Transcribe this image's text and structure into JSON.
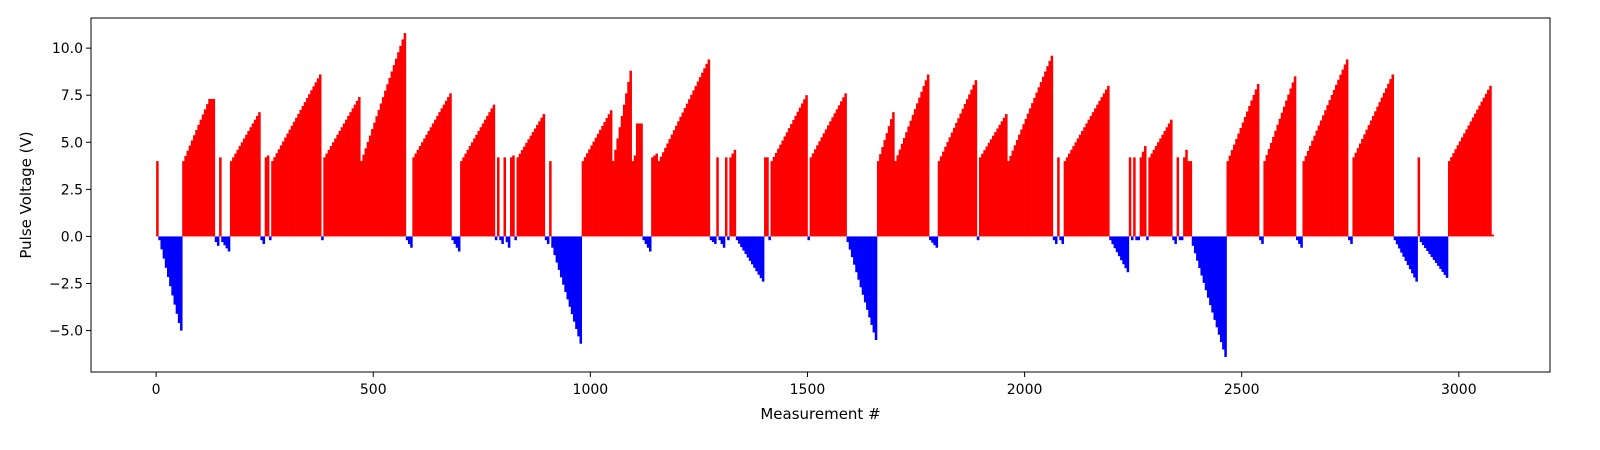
{
  "chart_data": {
    "type": "bar",
    "title": "",
    "xlabel": "Measurement #",
    "ylabel": "Pulse Voltage (V)",
    "xlim": [
      -150,
      3210
    ],
    "ylim": [
      -7.2,
      11.6
    ],
    "x_ticks": [
      0,
      500,
      1000,
      1500,
      2000,
      2500,
      3000
    ],
    "y_ticks": [
      -5.0,
      -2.5,
      0.0,
      2.5,
      5.0,
      7.5,
      10.0
    ],
    "y_tick_labels": [
      "−5.0",
      "−2.5",
      "0.0",
      "2.5",
      "5.0",
      "7.5",
      "10.0"
    ],
    "grid": false,
    "legend": "none",
    "colors": {
      "positive": "#ff0000",
      "negative": "#0000ff",
      "frame": "#000000"
    },
    "bar_step": 5,
    "segments": [
      {
        "x_start": 0,
        "x_end": 5,
        "start": 4.0,
        "end": 4.0
      },
      {
        "x_start": 5,
        "x_end": 55,
        "start": -0.2,
        "end": -4.6
      },
      {
        "x_start": 55,
        "x_end": 60,
        "start": -5.0,
        "end": -5.0
      },
      {
        "x_start": 60,
        "x_end": 125,
        "start": 4.0,
        "end": 7.3
      },
      {
        "x_start": 125,
        "x_end": 135,
        "start": 7.3,
        "end": 7.3
      },
      {
        "x_start": 135,
        "x_end": 145,
        "start": -0.3,
        "end": -0.5
      },
      {
        "x_start": 145,
        "x_end": 150,
        "start": 4.2,
        "end": 4.2
      },
      {
        "x_start": 150,
        "x_end": 170,
        "start": -0.3,
        "end": -0.8
      },
      {
        "x_start": 170,
        "x_end": 240,
        "start": 4.0,
        "end": 6.6
      },
      {
        "x_start": 240,
        "x_end": 250,
        "start": -0.2,
        "end": -0.4
      },
      {
        "x_start": 250,
        "x_end": 260,
        "start": 4.2,
        "end": 4.3
      },
      {
        "x_start": 260,
        "x_end": 265,
        "start": -0.2,
        "end": -0.2
      },
      {
        "x_start": 265,
        "x_end": 380,
        "start": 4.0,
        "end": 8.6
      },
      {
        "x_start": 380,
        "x_end": 385,
        "start": -0.2,
        "end": -0.2
      },
      {
        "x_start": 385,
        "x_end": 470,
        "start": 4.2,
        "end": 7.4
      },
      {
        "x_start": 470,
        "x_end": 575,
        "start": 4.0,
        "end": 10.8
      },
      {
        "x_start": 575,
        "x_end": 590,
        "start": -0.2,
        "end": -0.6
      },
      {
        "x_start": 590,
        "x_end": 680,
        "start": 4.2,
        "end": 7.6
      },
      {
        "x_start": 680,
        "x_end": 700,
        "start": -0.2,
        "end": -0.8
      },
      {
        "x_start": 700,
        "x_end": 780,
        "start": 4.0,
        "end": 7.0
      },
      {
        "x_start": 780,
        "x_end": 785,
        "start": -0.2,
        "end": -0.2
      },
      {
        "x_start": 785,
        "x_end": 790,
        "start": 4.2,
        "end": 4.2
      },
      {
        "x_start": 790,
        "x_end": 800,
        "start": -0.2,
        "end": -0.4
      },
      {
        "x_start": 800,
        "x_end": 805,
        "start": 4.2,
        "end": 4.2
      },
      {
        "x_start": 805,
        "x_end": 815,
        "start": -0.3,
        "end": -0.6
      },
      {
        "x_start": 815,
        "x_end": 825,
        "start": 4.2,
        "end": 4.3
      },
      {
        "x_start": 825,
        "x_end": 830,
        "start": -0.2,
        "end": -0.2
      },
      {
        "x_start": 830,
        "x_end": 895,
        "start": 4.2,
        "end": 6.5
      },
      {
        "x_start": 895,
        "x_end": 905,
        "start": -0.2,
        "end": -0.4
      },
      {
        "x_start": 905,
        "x_end": 910,
        "start": 4.0,
        "end": 4.0
      },
      {
        "x_start": 910,
        "x_end": 980,
        "start": -0.6,
        "end": -5.7
      },
      {
        "x_start": 980,
        "x_end": 1050,
        "start": 4.0,
        "end": 6.7
      },
      {
        "x_start": 1050,
        "x_end": 1095,
        "start": 4.0,
        "end": 8.8
      },
      {
        "x_start": 1095,
        "x_end": 1105,
        "start": 4.0,
        "end": 4.3
      },
      {
        "x_start": 1105,
        "x_end": 1120,
        "start": 6.0,
        "end": 6.0
      },
      {
        "x_start": 1120,
        "x_end": 1140,
        "start": -0.2,
        "end": -0.8
      },
      {
        "x_start": 1140,
        "x_end": 1155,
        "start": 4.2,
        "end": 4.4
      },
      {
        "x_start": 1155,
        "x_end": 1275,
        "start": 4.0,
        "end": 9.4
      },
      {
        "x_start": 1275,
        "x_end": 1290,
        "start": -0.2,
        "end": -0.4
      },
      {
        "x_start": 1290,
        "x_end": 1295,
        "start": 4.2,
        "end": 4.2
      },
      {
        "x_start": 1295,
        "x_end": 1310,
        "start": -0.2,
        "end": -0.6
      },
      {
        "x_start": 1310,
        "x_end": 1315,
        "start": 4.2,
        "end": 4.2
      },
      {
        "x_start": 1315,
        "x_end": 1320,
        "start": -0.2,
        "end": -0.2
      },
      {
        "x_start": 1320,
        "x_end": 1335,
        "start": 4.2,
        "end": 4.6
      },
      {
        "x_start": 1335,
        "x_end": 1400,
        "start": -0.2,
        "end": -2.4
      },
      {
        "x_start": 1400,
        "x_end": 1410,
        "start": 4.2,
        "end": 4.2
      },
      {
        "x_start": 1410,
        "x_end": 1415,
        "start": -0.2,
        "end": -0.2
      },
      {
        "x_start": 1415,
        "x_end": 1500,
        "start": 4.0,
        "end": 7.5
      },
      {
        "x_start": 1500,
        "x_end": 1505,
        "start": -0.2,
        "end": -0.2
      },
      {
        "x_start": 1505,
        "x_end": 1590,
        "start": 4.2,
        "end": 7.6
      },
      {
        "x_start": 1590,
        "x_end": 1660,
        "start": -0.3,
        "end": -5.5
      },
      {
        "x_start": 1660,
        "x_end": 1700,
        "start": 4.0,
        "end": 6.6
      },
      {
        "x_start": 1700,
        "x_end": 1780,
        "start": 4.0,
        "end": 8.6
      },
      {
        "x_start": 1780,
        "x_end": 1800,
        "start": -0.2,
        "end": -0.6
      },
      {
        "x_start": 1800,
        "x_end": 1890,
        "start": 4.0,
        "end": 8.3
      },
      {
        "x_start": 1890,
        "x_end": 1895,
        "start": -0.2,
        "end": -0.2
      },
      {
        "x_start": 1895,
        "x_end": 1960,
        "start": 4.2,
        "end": 6.5
      },
      {
        "x_start": 1960,
        "x_end": 2065,
        "start": 4.0,
        "end": 9.6
      },
      {
        "x_start": 2065,
        "x_end": 2075,
        "start": -0.2,
        "end": -0.4
      },
      {
        "x_start": 2075,
        "x_end": 2080,
        "start": 4.2,
        "end": 4.2
      },
      {
        "x_start": 2080,
        "x_end": 2090,
        "start": -0.2,
        "end": -0.4
      },
      {
        "x_start": 2090,
        "x_end": 2195,
        "start": 4.0,
        "end": 8.0
      },
      {
        "x_start": 2195,
        "x_end": 2240,
        "start": -0.2,
        "end": -1.9
      },
      {
        "x_start": 2240,
        "x_end": 2245,
        "start": 4.2,
        "end": 4.2
      },
      {
        "x_start": 2245,
        "x_end": 2250,
        "start": -0.2,
        "end": -0.2
      },
      {
        "x_start": 2250,
        "x_end": 2255,
        "start": 4.2,
        "end": 4.2
      },
      {
        "x_start": 2255,
        "x_end": 2265,
        "start": -0.2,
        "end": -0.2
      },
      {
        "x_start": 2265,
        "x_end": 2280,
        "start": 4.2,
        "end": 4.8
      },
      {
        "x_start": 2280,
        "x_end": 2285,
        "start": -0.2,
        "end": -0.2
      },
      {
        "x_start": 2285,
        "x_end": 2340,
        "start": 4.2,
        "end": 6.2
      },
      {
        "x_start": 2340,
        "x_end": 2350,
        "start": -0.2,
        "end": -0.4
      },
      {
        "x_start": 2350,
        "x_end": 2355,
        "start": 4.2,
        "end": 4.2
      },
      {
        "x_start": 2355,
        "x_end": 2365,
        "start": -0.2,
        "end": -0.2
      },
      {
        "x_start": 2365,
        "x_end": 2375,
        "start": 4.2,
        "end": 4.6
      },
      {
        "x_start": 2375,
        "x_end": 2385,
        "start": 4.0,
        "end": 4.0
      },
      {
        "x_start": 2385,
        "x_end": 2465,
        "start": -0.5,
        "end": -6.4
      },
      {
        "x_start": 2465,
        "x_end": 2540,
        "start": 4.0,
        "end": 8.1
      },
      {
        "x_start": 2540,
        "x_end": 2550,
        "start": -0.2,
        "end": -0.4
      },
      {
        "x_start": 2550,
        "x_end": 2625,
        "start": 4.0,
        "end": 8.5
      },
      {
        "x_start": 2625,
        "x_end": 2640,
        "start": -0.2,
        "end": -0.6
      },
      {
        "x_start": 2640,
        "x_end": 2745,
        "start": 4.0,
        "end": 9.4
      },
      {
        "x_start": 2745,
        "x_end": 2755,
        "start": -0.2,
        "end": -0.4
      },
      {
        "x_start": 2755,
        "x_end": 2850,
        "start": 4.2,
        "end": 8.6
      },
      {
        "x_start": 2850,
        "x_end": 2905,
        "start": -0.2,
        "end": -2.4
      },
      {
        "x_start": 2905,
        "x_end": 2910,
        "start": 4.2,
        "end": 4.2
      },
      {
        "x_start": 2910,
        "x_end": 2975,
        "start": -0.3,
        "end": -2.2
      },
      {
        "x_start": 2975,
        "x_end": 3075,
        "start": 4.0,
        "end": 8.0
      },
      {
        "x_start": 3075,
        "x_end": 3080,
        "start": 0.1,
        "end": 0.1
      }
    ]
  }
}
